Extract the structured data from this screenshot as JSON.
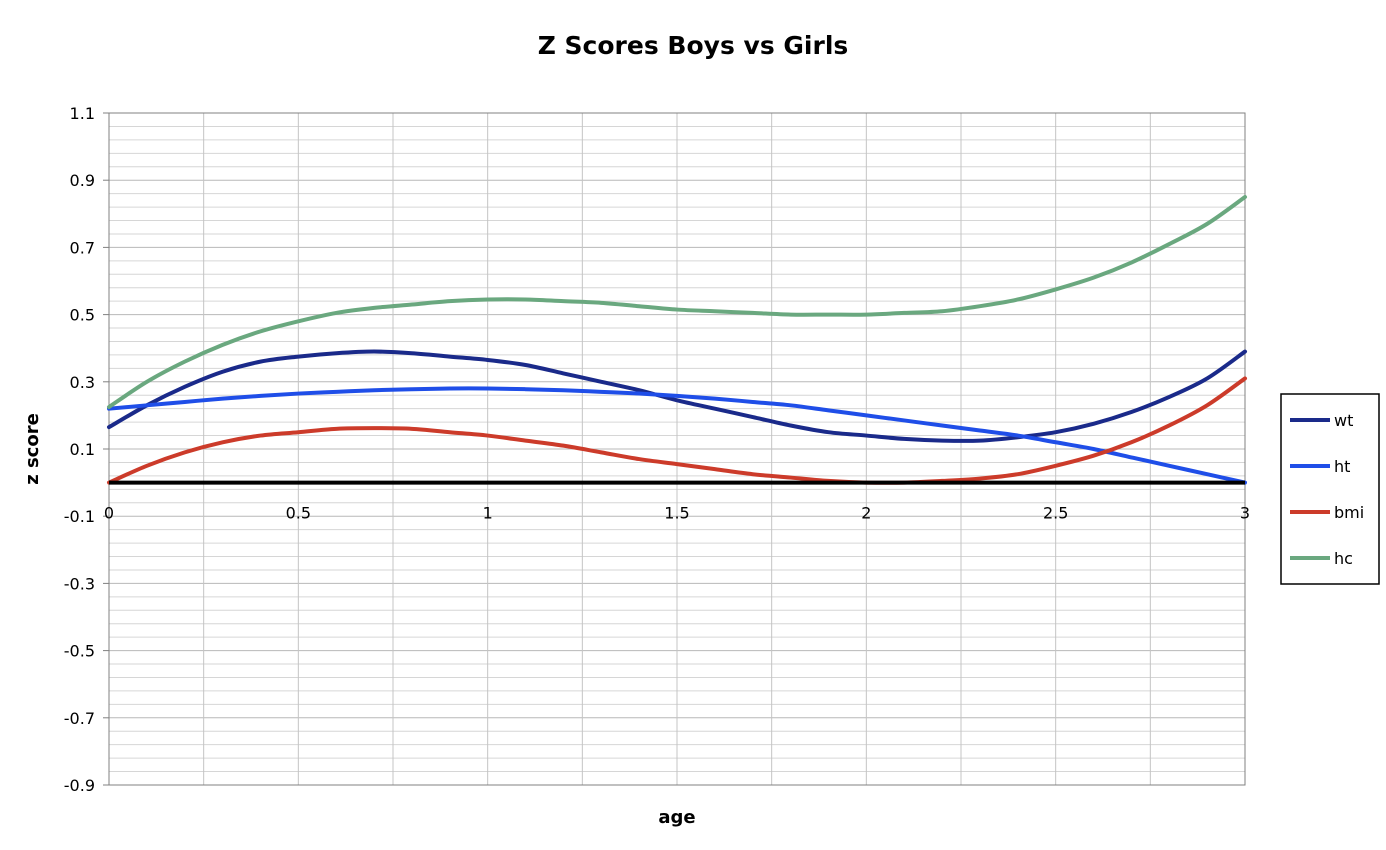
{
  "chart_data": {
    "type": "line",
    "title": "Z Scores Boys vs Girls",
    "xlabel": "age",
    "ylabel": "z score",
    "xlim": [
      0,
      3
    ],
    "ylim": [
      -0.9,
      1.1
    ],
    "x_ticks": [
      0,
      0.5,
      1,
      1.5,
      2,
      2.5,
      3
    ],
    "x_tick_labels": [
      "0",
      "0.5",
      "1",
      "1.5",
      "2",
      "2.5",
      "3"
    ],
    "y_ticks": [
      1.1,
      0.9,
      0.7,
      0.5,
      0.3,
      0.1,
      -0.1,
      -0.3,
      -0.5,
      -0.7,
      -0.9
    ],
    "y_tick_labels": [
      "1.1",
      "0.9",
      "0.7",
      "0.5",
      "0.3",
      "0.1",
      "-0.1",
      "-0.3",
      "-0.5",
      "-0.7",
      "-0.9"
    ],
    "grid": true,
    "legend_position": "right",
    "x": [
      0,
      0.1,
      0.2,
      0.3,
      0.4,
      0.5,
      0.6,
      0.7,
      0.8,
      0.9,
      1.0,
      1.1,
      1.2,
      1.3,
      1.4,
      1.5,
      1.6,
      1.7,
      1.8,
      1.9,
      2.0,
      2.1,
      2.2,
      2.3,
      2.4,
      2.5,
      2.6,
      2.7,
      2.8,
      2.9,
      3.0
    ],
    "series": [
      {
        "name": "wt",
        "color": "#1a2a8a",
        "values": [
          0.165,
          0.23,
          0.285,
          0.33,
          0.36,
          0.375,
          0.385,
          0.39,
          0.385,
          0.375,
          0.365,
          0.35,
          0.325,
          0.3,
          0.275,
          0.245,
          0.22,
          0.195,
          0.17,
          0.15,
          0.14,
          0.13,
          0.125,
          0.125,
          0.135,
          0.15,
          0.175,
          0.21,
          0.255,
          0.31,
          0.39
        ]
      },
      {
        "name": "ht",
        "color": "#1f4ee8",
        "values": [
          0.22,
          0.23,
          0.24,
          0.25,
          0.258,
          0.265,
          0.27,
          0.275,
          0.278,
          0.28,
          0.28,
          0.278,
          0.275,
          0.27,
          0.265,
          0.258,
          0.25,
          0.24,
          0.23,
          0.215,
          0.2,
          0.185,
          0.17,
          0.155,
          0.14,
          0.12,
          0.1,
          0.075,
          0.05,
          0.025,
          0.0
        ]
      },
      {
        "name": "bmi",
        "color": "#cc3b2a",
        "values": [
          0.0,
          0.05,
          0.09,
          0.12,
          0.14,
          0.15,
          0.16,
          0.162,
          0.16,
          0.15,
          0.14,
          0.125,
          0.11,
          0.09,
          0.07,
          0.055,
          0.04,
          0.025,
          0.015,
          0.005,
          0.0,
          0.0,
          0.005,
          0.012,
          0.025,
          0.05,
          0.08,
          0.12,
          0.17,
          0.23,
          0.31
        ]
      },
      {
        "name": "hc",
        "color": "#6aa87f",
        "values": [
          0.225,
          0.3,
          0.36,
          0.41,
          0.45,
          0.48,
          0.505,
          0.52,
          0.53,
          0.54,
          0.545,
          0.545,
          0.54,
          0.535,
          0.525,
          0.515,
          0.51,
          0.505,
          0.5,
          0.5,
          0.5,
          0.505,
          0.51,
          0.525,
          0.545,
          0.575,
          0.61,
          0.655,
          0.71,
          0.77,
          0.85
        ]
      }
    ]
  }
}
